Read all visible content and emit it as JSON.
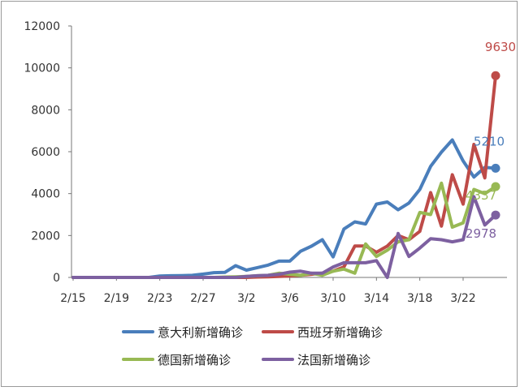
{
  "chart_data": {
    "type": "line",
    "title": "",
    "xlabel": "",
    "ylabel": "",
    "ylim": [
      0,
      12000
    ],
    "yticks": [
      0,
      2000,
      4000,
      6000,
      8000,
      10000,
      12000
    ],
    "categories": [
      "2/15",
      "2/16",
      "2/17",
      "2/18",
      "2/19",
      "2/20",
      "2/21",
      "2/22",
      "2/23",
      "2/24",
      "2/25",
      "2/26",
      "2/27",
      "2/28",
      "2/29",
      "3/1",
      "3/2",
      "3/3",
      "3/4",
      "3/5",
      "3/6",
      "3/7",
      "3/8",
      "3/9",
      "3/10",
      "3/11",
      "3/12",
      "3/13",
      "3/14",
      "3/15",
      "3/16",
      "3/17",
      "3/18",
      "3/19",
      "3/20",
      "3/21",
      "3/22",
      "3/23",
      "3/24",
      "3/25"
    ],
    "xtick_labels": [
      "2/15",
      "2/19",
      "2/23",
      "2/27",
      "3/2",
      "3/6",
      "3/10",
      "3/14",
      "3/18",
      "3/22"
    ],
    "grid": false,
    "legend": "bottom",
    "series": [
      {
        "name": "意大利新增确诊",
        "color": "#4a7ebb",
        "end_label": "5210",
        "values": [
          0,
          0,
          0,
          0,
          0,
          0,
          0,
          0,
          70,
          80,
          90,
          100,
          160,
          230,
          240,
          560,
          350,
          470,
          590,
          780,
          780,
          1250,
          1490,
          1800,
          980,
          2310,
          2650,
          2550,
          3500,
          3600,
          3230,
          3550,
          4200,
          5300,
          5980,
          6560,
          5560,
          4790,
          5250,
          5210
        ]
      },
      {
        "name": "西班牙新增确诊",
        "color": "#be4b48",
        "end_label": "9630",
        "values": [
          0,
          0,
          0,
          0,
          0,
          0,
          0,
          0,
          0,
          0,
          0,
          0,
          0,
          0,
          0,
          0,
          0,
          20,
          30,
          50,
          70,
          100,
          150,
          200,
          300,
          500,
          1500,
          1500,
          1200,
          1500,
          2000,
          1800,
          2200,
          4050,
          2450,
          4900,
          3500,
          6350,
          4750,
          9630
        ]
      },
      {
        "name": "德国新增确诊",
        "color": "#98b954",
        "end_label": "4337",
        "values": [
          0,
          0,
          0,
          0,
          0,
          0,
          0,
          0,
          0,
          0,
          0,
          0,
          0,
          0,
          20,
          30,
          50,
          80,
          100,
          200,
          150,
          100,
          200,
          100,
          300,
          400,
          200,
          1600,
          1000,
          1300,
          1700,
          1800,
          3100,
          3000,
          4500,
          2400,
          2600,
          4200,
          4000,
          4337
        ]
      },
      {
        "name": "法国新增确诊",
        "color": "#7d60a0",
        "end_label": "2978",
        "values": [
          0,
          0,
          0,
          0,
          0,
          0,
          0,
          0,
          0,
          0,
          0,
          0,
          0,
          0,
          0,
          0,
          50,
          80,
          100,
          150,
          250,
          300,
          200,
          200,
          500,
          700,
          700,
          700,
          800,
          0,
          2100,
          1000,
          1400,
          1850,
          1800,
          1700,
          1800,
          3850,
          2500,
          2978
        ]
      }
    ]
  }
}
